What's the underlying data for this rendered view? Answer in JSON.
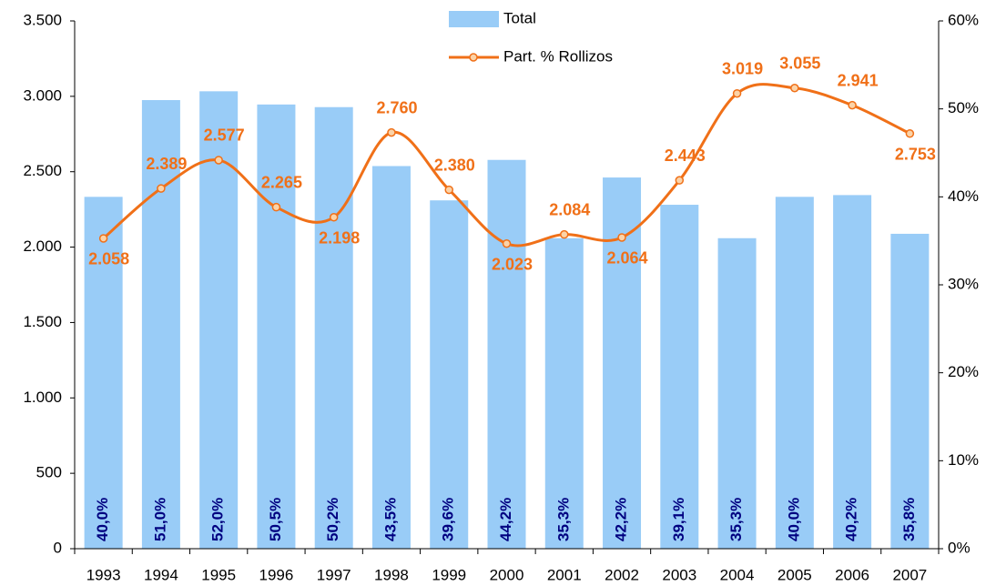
{
  "chart_data": {
    "type": "bar_line",
    "categories": [
      "1993",
      "1994",
      "1995",
      "1996",
      "1997",
      "1998",
      "1999",
      "2000",
      "2001",
      "2002",
      "2003",
      "2004",
      "2005",
      "2006",
      "2007"
    ],
    "series": [
      {
        "name": "Total",
        "type": "bar",
        "axis": "y2",
        "color": "#99ccf7",
        "values": [
          40.0,
          51.0,
          52.0,
          50.5,
          50.2,
          43.5,
          39.6,
          44.2,
          35.3,
          42.2,
          39.1,
          35.3,
          40.0,
          40.2,
          35.8
        ],
        "value_labels": [
          "40,0%",
          "51,0%",
          "52,0%",
          "50,5%",
          "50,2%",
          "43,5%",
          "39,6%",
          "44,2%",
          "35,3%",
          "42,2%",
          "39,1%",
          "35,3%",
          "40,0%",
          "40,2%",
          "35,8%"
        ],
        "label_color": "#000080"
      },
      {
        "name": "Part. % Rollizos",
        "type": "line",
        "axis": "y",
        "color": "#f07018",
        "values": [
          2058,
          2389,
          2577,
          2265,
          2198,
          2760,
          2380,
          2023,
          2084,
          2064,
          2443,
          3019,
          3055,
          2941,
          2753
        ],
        "value_labels": [
          "2.058",
          "2.389",
          "2.577",
          "2.265",
          "2.198",
          "2.760",
          "2.380",
          "2.023",
          "2.084",
          "2.064",
          "2.443",
          "3.019",
          "3.055",
          "2.941",
          "2.753"
        ]
      }
    ],
    "ylim": [
      0,
      3500
    ],
    "yticks": [
      0,
      500,
      {
        "value": 1000,
        "label": "1.000"
      },
      {
        "value": 1500,
        "label": "1.500"
      },
      {
        "value": 2000,
        "label": "2.000"
      },
      {
        "value": 2500,
        "label": "2.500"
      },
      {
        "value": 3000,
        "label": "3.000"
      },
      {
        "value": 3500,
        "label": "3.500"
      }
    ],
    "y2lim": [
      0,
      60
    ],
    "y2ticks": [
      {
        "value": 0,
        "label": "0%"
      },
      {
        "value": 10,
        "label": "10%"
      },
      {
        "value": 20,
        "label": "20%"
      },
      {
        "value": 30,
        "label": "30%"
      },
      {
        "value": 40,
        "label": "40%"
      },
      {
        "value": 50,
        "label": "50%"
      },
      {
        "value": 60,
        "label": "60%"
      }
    ],
    "legend": "top",
    "smooth": true
  }
}
